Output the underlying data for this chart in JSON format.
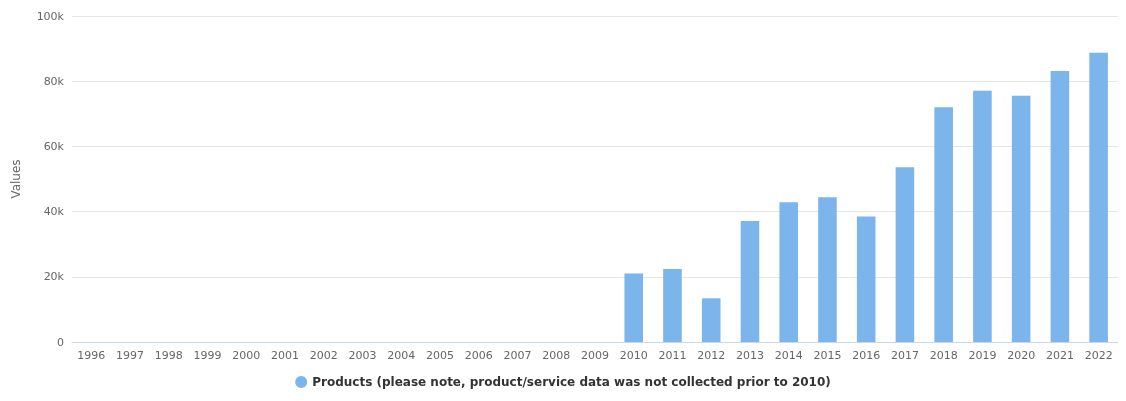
{
  "chart_data": {
    "type": "bar",
    "ylabel": "Values",
    "categories": [
      "1996",
      "1997",
      "1998",
      "1999",
      "2000",
      "2001",
      "2002",
      "2003",
      "2004",
      "2005",
      "2006",
      "2007",
      "2008",
      "2009",
      "2010",
      "2011",
      "2012",
      "2013",
      "2014",
      "2015",
      "2016",
      "2017",
      "2018",
      "2019",
      "2020",
      "2021",
      "2022"
    ],
    "series": [
      {
        "name": "Products (please note, product/service data was not collected prior to 2010)",
        "color": "#7cb5ec",
        "values": [
          null,
          null,
          null,
          null,
          null,
          null,
          null,
          null,
          null,
          null,
          null,
          null,
          null,
          null,
          21000,
          22400,
          13400,
          37100,
          42900,
          44400,
          38500,
          53600,
          72000,
          77100,
          75500,
          83100,
          88700
        ]
      }
    ],
    "ylim": [
      0,
      100000
    ],
    "yticks": [
      0,
      {
        "value": 20000,
        "label": "20k"
      },
      {
        "value": 40000,
        "label": "40k"
      },
      {
        "value": 60000,
        "label": "60k"
      },
      {
        "value": 80000,
        "label": "80k"
      },
      {
        "value": 100000,
        "label": "100k"
      }
    ],
    "grid": "y",
    "legend": "bottom"
  }
}
